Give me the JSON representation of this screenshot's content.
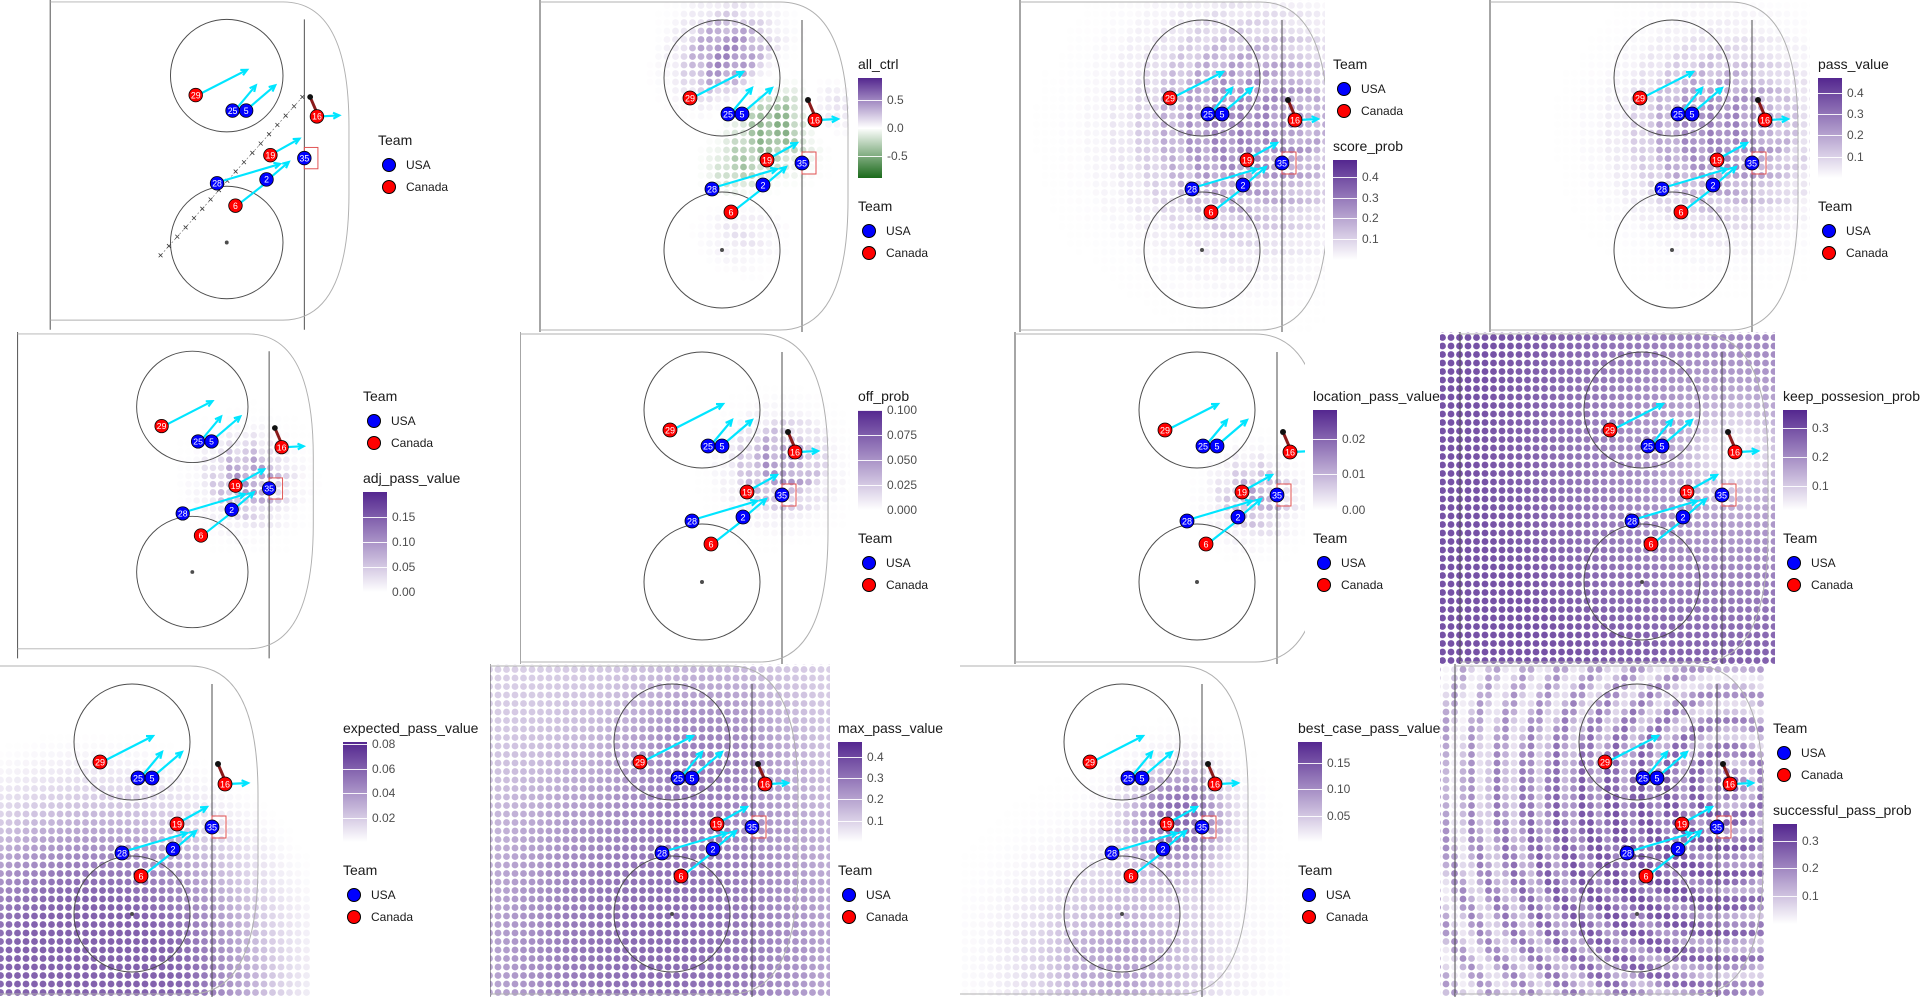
{
  "legend_team_title": "Team",
  "teams": [
    {
      "name": "USA",
      "color": "#0000ff"
    },
    {
      "name": "Canada",
      "color": "#ff0000"
    }
  ],
  "colors": {
    "purple_high": "#54278f",
    "purple_low": "#ffffff",
    "green_low": "#1b6a1b",
    "pass_arrow": "#00e5ff",
    "rink_lines": "#4d4d4d",
    "net": "#e05050",
    "stick": "#8b1a1a"
  },
  "players": [
    {
      "team": "Canada",
      "number": "29"
    },
    {
      "team": "USA",
      "number": "25"
    },
    {
      "team": "USA",
      "number": "5"
    },
    {
      "team": "Canada",
      "number": "16"
    },
    {
      "team": "Canada",
      "number": "19"
    },
    {
      "team": "USA",
      "number": "35"
    },
    {
      "team": "USA",
      "number": "28"
    },
    {
      "team": "USA",
      "number": "2"
    },
    {
      "team": "Canada",
      "number": "6"
    }
  ],
  "panels": [
    {
      "id": "tracking",
      "title": "",
      "colorbar": null,
      "legend_order": [
        "team"
      ]
    },
    {
      "id": "all_ctrl",
      "title": "all_ctrl",
      "scale": "diverging",
      "colorbar": {
        "range": [
          -0.9,
          0.9
        ],
        "ticks": [
          0.5,
          0.0,
          -0.5
        ],
        "tick_labels": [
          "0.5",
          "0.0",
          "-0.5"
        ]
      },
      "legend_order": [
        "colorbar",
        "team"
      ]
    },
    {
      "id": "score_prob",
      "title": "score_prob",
      "scale": "purple",
      "colorbar": {
        "range": [
          0,
          0.48
        ],
        "ticks": [
          0.4,
          0.3,
          0.2,
          0.1
        ],
        "tick_labels": [
          "0.4",
          "0.3",
          "0.2",
          "0.1"
        ]
      },
      "legend_order": [
        "team",
        "colorbar"
      ]
    },
    {
      "id": "pass_value",
      "title": "pass_value",
      "scale": "purple",
      "colorbar": {
        "range": [
          0,
          0.47
        ],
        "ticks": [
          0.4,
          0.3,
          0.2,
          0.1
        ],
        "tick_labels": [
          "0.4",
          "0.3",
          "0.2",
          "0.1"
        ]
      },
      "legend_order": [
        "colorbar",
        "team"
      ]
    },
    {
      "id": "adj_pass_value",
      "title": "adj_pass_value",
      "scale": "purple",
      "colorbar": {
        "range": [
          0,
          0.2
        ],
        "ticks": [
          0.15,
          0.1,
          0.05,
          0.0
        ],
        "tick_labels": [
          "0.15",
          "0.10",
          "0.05",
          "0.00"
        ]
      },
      "legend_order": [
        "team",
        "colorbar"
      ]
    },
    {
      "id": "off_prob",
      "title": "off_prob",
      "scale": "purple",
      "colorbar": {
        "range": [
          0,
          0.1
        ],
        "ticks": [
          0.1,
          0.075,
          0.05,
          0.025,
          0.0
        ],
        "tick_labels": [
          "0.100",
          "0.075",
          "0.050",
          "0.025",
          "0.000"
        ]
      },
      "legend_order": [
        "colorbar",
        "team"
      ]
    },
    {
      "id": "location_pass_value",
      "title": "location_pass_value",
      "scale": "purple",
      "colorbar": {
        "range": [
          0,
          0.028
        ],
        "ticks": [
          0.02,
          0.01,
          0.0
        ],
        "tick_labels": [
          "0.02",
          "0.01",
          "0.00"
        ]
      },
      "legend_order": [
        "colorbar",
        "team"
      ]
    },
    {
      "id": "keep_possesion_prob",
      "title": "keep_possesion_prob",
      "scale": "purple",
      "colorbar": {
        "range": [
          0.02,
          0.36
        ],
        "ticks": [
          0.3,
          0.2,
          0.1
        ],
        "tick_labels": [
          "0.3",
          "0.2",
          "0.1"
        ]
      },
      "legend_order": [
        "colorbar",
        "team"
      ]
    },
    {
      "id": "expected_pass_value",
      "title": "expected_pass_value",
      "scale": "purple",
      "colorbar": {
        "range": [
          0,
          0.082
        ],
        "ticks": [
          0.08,
          0.06,
          0.04,
          0.02
        ],
        "tick_labels": [
          "0.08",
          "0.06",
          "0.04",
          "0.02"
        ]
      },
      "legend_order": [
        "colorbar",
        "team"
      ]
    },
    {
      "id": "max_pass_value",
      "title": "max_pass_value",
      "scale": "purple",
      "colorbar": {
        "range": [
          0,
          0.47
        ],
        "ticks": [
          0.4,
          0.3,
          0.2,
          0.1
        ],
        "tick_labels": [
          "0.4",
          "0.3",
          "0.2",
          "0.1"
        ]
      },
      "legend_order": [
        "colorbar",
        "team"
      ]
    },
    {
      "id": "best_case_pass_value",
      "title": "best_case_pass_value",
      "scale": "purple",
      "colorbar": {
        "range": [
          0,
          0.19
        ],
        "ticks": [
          0.15,
          0.1,
          0.05
        ],
        "tick_labels": [
          "0.15",
          "0.10",
          "0.05"
        ]
      },
      "legend_order": [
        "colorbar",
        "team"
      ]
    },
    {
      "id": "successful_pass_prob",
      "title": "successful_pass_prob",
      "scale": "purple",
      "colorbar": {
        "range": [
          0,
          0.36
        ],
        "ticks": [
          0.3,
          0.2,
          0.1
        ],
        "tick_labels": [
          "0.3",
          "0.2",
          "0.1"
        ]
      },
      "legend_order": [
        "team",
        "colorbar"
      ]
    }
  ],
  "chart_data": [
    {
      "type": "scatter",
      "title": "",
      "series": [
        {
          "name": "USA",
          "labels": [
            "25",
            "5",
            "35",
            "28",
            "2"
          ]
        },
        {
          "name": "Canada",
          "labels": [
            "29",
            "16",
            "19",
            "6"
          ]
        }
      ]
    },
    {
      "type": "heatmap",
      "title": "all_ctrl",
      "zlim": [
        -0.9,
        0.9
      ],
      "legend": [
        "all_ctrl",
        "Team"
      ]
    },
    {
      "type": "heatmap",
      "title": "score_prob",
      "zlim": [
        0,
        0.48
      ],
      "legend": [
        "Team",
        "score_prob"
      ]
    },
    {
      "type": "heatmap",
      "title": "pass_value",
      "zlim": [
        0,
        0.47
      ],
      "legend": [
        "pass_value",
        "Team"
      ]
    },
    {
      "type": "heatmap",
      "title": "adj_pass_value",
      "zlim": [
        0,
        0.2
      ],
      "legend": [
        "Team",
        "adj_pass_value"
      ]
    },
    {
      "type": "heatmap",
      "title": "off_prob",
      "zlim": [
        0,
        0.1
      ],
      "legend": [
        "off_prob",
        "Team"
      ]
    },
    {
      "type": "heatmap",
      "title": "location_pass_value",
      "zlim": [
        0,
        0.028
      ],
      "legend": [
        "location_pass_value",
        "Team"
      ]
    },
    {
      "type": "heatmap",
      "title": "keep_possesion_prob",
      "zlim": [
        0.02,
        0.36
      ],
      "legend": [
        "keep_possesion_prob",
        "Team"
      ]
    },
    {
      "type": "heatmap",
      "title": "expected_pass_value",
      "zlim": [
        0,
        0.082
      ],
      "legend": [
        "expected_pass_value",
        "Team"
      ]
    },
    {
      "type": "heatmap",
      "title": "max_pass_value",
      "zlim": [
        0,
        0.47
      ],
      "legend": [
        "max_pass_value",
        "Team"
      ]
    },
    {
      "type": "heatmap",
      "title": "best_case_pass_value",
      "zlim": [
        0,
        0.19
      ],
      "legend": [
        "best_case_pass_value",
        "Team"
      ]
    },
    {
      "type": "heatmap",
      "title": "successful_pass_prob",
      "zlim": [
        0,
        0.36
      ],
      "legend": [
        "Team",
        "successful_pass_prob"
      ]
    }
  ]
}
